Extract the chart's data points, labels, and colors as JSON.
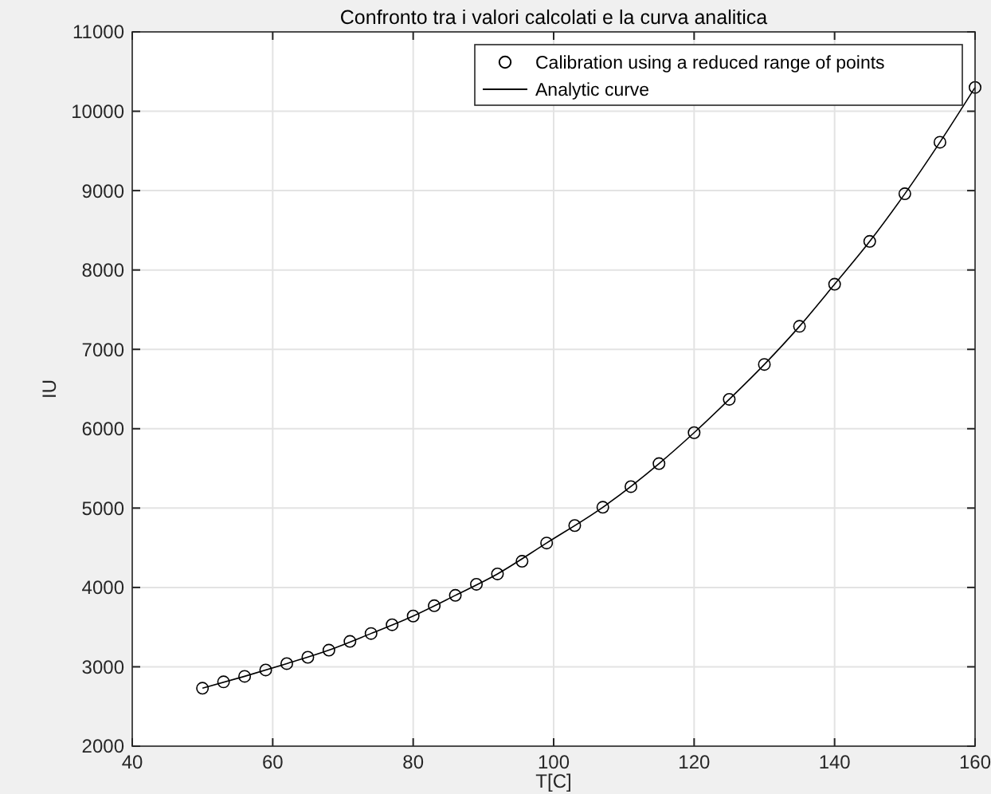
{
  "chart_data": {
    "type": "scatter",
    "title": "Confronto tra i valori calcolati e la curva analitica",
    "xlabel": "T[C]",
    "ylabel": "IU",
    "xlim": [
      40,
      160
    ],
    "ylim": [
      2000,
      11000
    ],
    "xticks": [
      40,
      60,
      80,
      100,
      120,
      140,
      160
    ],
    "yticks": [
      2000,
      3000,
      4000,
      5000,
      6000,
      7000,
      8000,
      9000,
      10000,
      11000
    ],
    "grid": true,
    "legend": "top right",
    "series": [
      {
        "name": "Calibration using a reduced range of points",
        "color": "#000000",
        "x": [
          50,
          53,
          56,
          59,
          62,
          65,
          68,
          71,
          74,
          77,
          80,
          83,
          86,
          89,
          92,
          95.5,
          99,
          103,
          107,
          111,
          115,
          120,
          125,
          130,
          135,
          140,
          145,
          150,
          155,
          160
        ],
        "values": [
          2730,
          2810,
          2880,
          2960,
          3040,
          3120,
          3210,
          3320,
          3420,
          3530,
          3640,
          3770,
          3900,
          4040,
          4170,
          4330,
          4560,
          4780,
          5010,
          5270,
          5560,
          5950,
          6370,
          6810,
          7290,
          7820,
          8360,
          8960,
          9610,
          10300
        ]
      },
      {
        "name": "Analytic curve",
        "type": "line",
        "marker": "none",
        "line_style": "solid",
        "color": "#000000",
        "x": [
          50,
          56,
          62,
          68,
          74,
          80,
          86,
          92,
          99,
          107,
          115,
          120,
          125,
          130,
          135,
          140,
          145,
          150,
          155,
          160
        ],
        "values": [
          2730,
          2880,
          3040,
          3210,
          3420,
          3640,
          3900,
          4170,
          4560,
          5010,
          5560,
          5950,
          6370,
          6810,
          7290,
          7820,
          8360,
          8960,
          9610,
          10300
        ]
      }
    ]
  }
}
